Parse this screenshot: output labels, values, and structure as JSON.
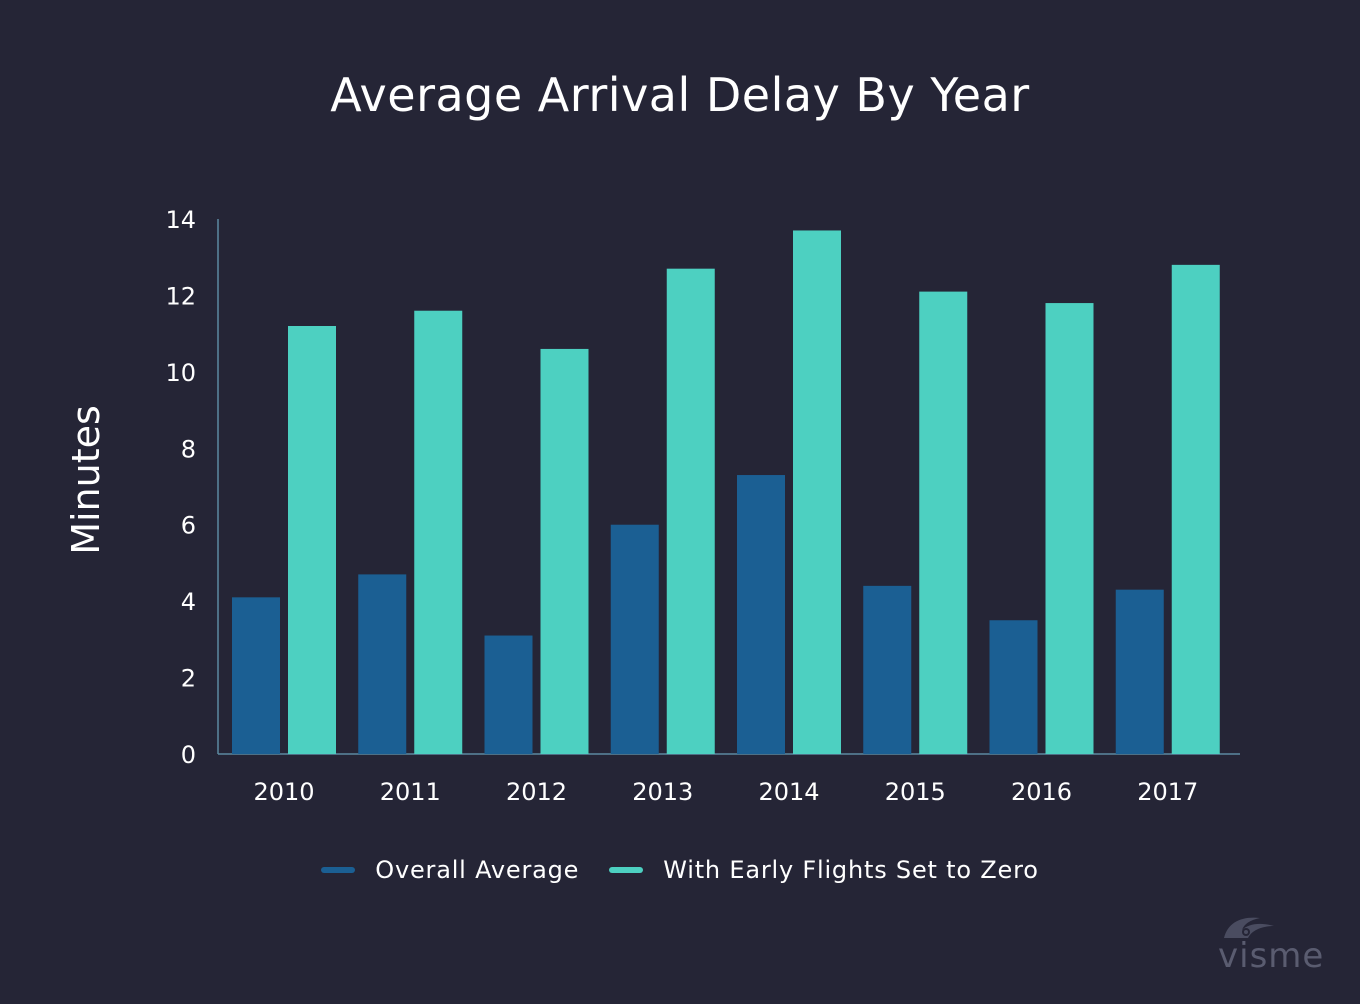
{
  "chart_data": {
    "type": "bar",
    "title": "Average Arrival Delay By Year",
    "xlabel": "",
    "ylabel": "Minutes",
    "categories": [
      "2010",
      "2011",
      "2012",
      "2013",
      "2014",
      "2015",
      "2016",
      "2017"
    ],
    "series": [
      {
        "name": "Overall Average",
        "color": "#1b5f93",
        "values": [
          4.1,
          4.7,
          3.1,
          6.0,
          7.3,
          4.4,
          3.5,
          4.3
        ]
      },
      {
        "name": "With Early Flights Set to Zero",
        "color": "#4dd0c1",
        "values": [
          11.2,
          11.6,
          10.6,
          12.7,
          13.7,
          12.1,
          11.8,
          12.8
        ]
      }
    ],
    "ylim": [
      0,
      14
    ],
    "yticks": [
      0,
      2,
      4,
      6,
      8,
      10,
      12,
      14
    ],
    "grid": false,
    "legend": "bottom-center"
  },
  "watermark": {
    "text": "visme",
    "icon": "visme-logo-icon"
  }
}
